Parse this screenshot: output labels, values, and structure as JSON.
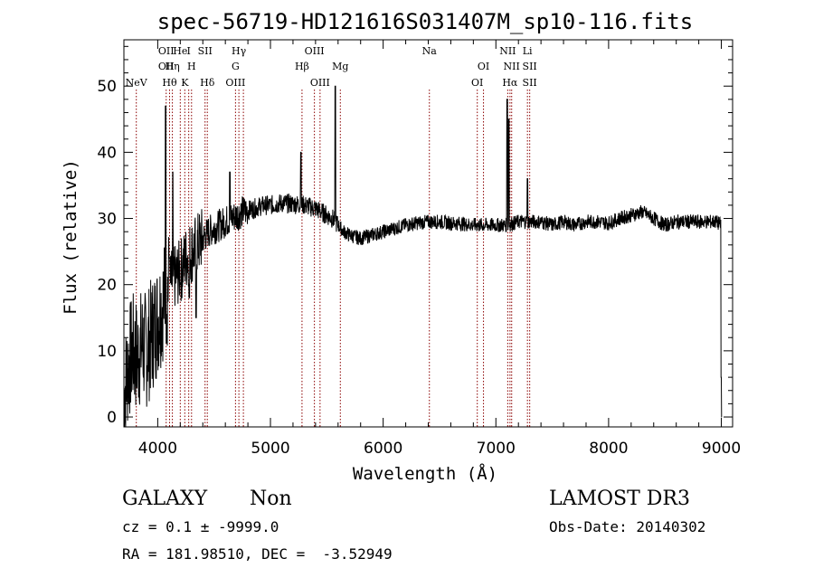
{
  "chart_data": {
    "type": "line",
    "title": "spec-56719-HD121616S031407M_sp10-116.fits",
    "xlabel": "Wavelength (Å)",
    "ylabel": "Flux (relative)",
    "xlim": [
      3700,
      9100
    ],
    "ylim": [
      -1.5,
      57
    ],
    "x_ticks": [
      4000,
      5000,
      6000,
      7000,
      8000,
      9000
    ],
    "y_ticks": [
      0,
      10,
      20,
      30,
      40,
      50
    ],
    "grid": false,
    "line_color": "#000000",
    "marker_color": "#8b0000",
    "anchors": [
      [
        3700,
        3
      ],
      [
        3740,
        8
      ],
      [
        3780,
        10
      ],
      [
        3820,
        9
      ],
      [
        3860,
        11
      ],
      [
        3900,
        10
      ],
      [
        3940,
        12
      ],
      [
        3980,
        14
      ],
      [
        4020,
        16
      ],
      [
        4060,
        18
      ],
      [
        4100,
        20
      ],
      [
        4150,
        21
      ],
      [
        4200,
        22
      ],
      [
        4250,
        24
      ],
      [
        4300,
        25
      ],
      [
        4350,
        26
      ],
      [
        4400,
        27
      ],
      [
        4450,
        28
      ],
      [
        4500,
        28.5
      ],
      [
        4550,
        29
      ],
      [
        4600,
        29.5
      ],
      [
        4650,
        30
      ],
      [
        4700,
        30.5
      ],
      [
        4750,
        31
      ],
      [
        4800,
        31.2
      ],
      [
        4850,
        31.5
      ],
      [
        4900,
        31.8
      ],
      [
        4950,
        32
      ],
      [
        5000,
        32
      ],
      [
        5100,
        32.3
      ],
      [
        5200,
        32.2
      ],
      [
        5300,
        32
      ],
      [
        5400,
        31.5
      ],
      [
        5500,
        30.5
      ],
      [
        5550,
        30
      ],
      [
        5600,
        29
      ],
      [
        5650,
        28
      ],
      [
        5700,
        27.5
      ],
      [
        5800,
        27
      ],
      [
        5900,
        27.5
      ],
      [
        6000,
        28
      ],
      [
        6100,
        28.5
      ],
      [
        6200,
        29
      ],
      [
        6300,
        29.3
      ],
      [
        6400,
        29.5
      ],
      [
        6500,
        29.5
      ],
      [
        6600,
        29.3
      ],
      [
        6700,
        29.2
      ],
      [
        6800,
        29
      ],
      [
        6900,
        29
      ],
      [
        7000,
        29
      ],
      [
        7100,
        29
      ],
      [
        7200,
        29.5
      ],
      [
        7300,
        29.5
      ],
      [
        7400,
        29.5
      ],
      [
        7500,
        29
      ],
      [
        7600,
        29.5
      ],
      [
        7700,
        29
      ],
      [
        7800,
        29.5
      ],
      [
        7900,
        29.5
      ],
      [
        8000,
        29.3
      ],
      [
        8100,
        30
      ],
      [
        8200,
        30.5
      ],
      [
        8300,
        31
      ],
      [
        8400,
        30
      ],
      [
        8500,
        29
      ],
      [
        8600,
        29.5
      ],
      [
        8700,
        29.5
      ],
      [
        8800,
        29.5
      ],
      [
        8900,
        29.5
      ],
      [
        8950,
        29.5
      ],
      [
        9000,
        29
      ]
    ],
    "spikes": [
      [
        4070,
        47
      ],
      [
        4102,
        24
      ],
      [
        4134,
        37
      ],
      [
        4200,
        20
      ],
      [
        4280,
        18
      ],
      [
        4340,
        15
      ],
      [
        4640,
        37
      ],
      [
        5270,
        40
      ],
      [
        5575,
        50
      ],
      [
        7100,
        48
      ],
      [
        7115,
        45
      ],
      [
        7280,
        36
      ],
      [
        9000,
        6
      ],
      [
        9005,
        0
      ]
    ],
    "lines": [
      {
        "x": 3810,
        "labels": [
          {
            "t": "NeV",
            "row": 3
          }
        ]
      },
      {
        "x": 4075,
        "labels": [
          {
            "t": "OII",
            "row": 1
          },
          {
            "t": "OII",
            "row": 2
          }
        ]
      },
      {
        "x": 4105,
        "labels": [
          {
            "t": "Hθ",
            "row": 3
          }
        ]
      },
      {
        "x": 4130,
        "labels": [
          {
            "t": "Hη",
            "row": 2
          }
        ]
      },
      {
        "x": 4200,
        "labels": [
          {
            "t": "He",
            "row": 1
          }
        ]
      },
      {
        "x": 4240,
        "labels": [
          {
            "t": "K",
            "row": 3
          }
        ]
      },
      {
        "x": 4275,
        "labels": [
          {
            "t": "I",
            "row": 1
          }
        ]
      },
      {
        "x": 4300,
        "labels": [
          {
            "t": "H",
            "row": 2
          }
        ]
      },
      {
        "x": 4420,
        "labels": [
          {
            "t": "SII",
            "row": 1
          }
        ]
      },
      {
        "x": 4440,
        "labels": [
          {
            "t": "Hδ",
            "row": 3
          }
        ]
      },
      {
        "x": 4690,
        "labels": [
          {
            "t": "G",
            "row": 2
          },
          {
            "t": "OIII",
            "row": 3
          }
        ]
      },
      {
        "x": 4720,
        "labels": [
          {
            "t": "Hγ",
            "row": 1
          }
        ]
      },
      {
        "x": 4760,
        "labels": []
      },
      {
        "x": 5280,
        "labels": [
          {
            "t": "Hβ",
            "row": 2
          }
        ]
      },
      {
        "x": 5390,
        "labels": [
          {
            "t": "OIII",
            "row": 1
          }
        ]
      },
      {
        "x": 5440,
        "labels": [
          {
            "t": "OIII",
            "row": 3
          }
        ]
      },
      {
        "x": 5620,
        "labels": [
          {
            "t": "Mg",
            "row": 2
          }
        ]
      },
      {
        "x": 6410,
        "labels": [
          {
            "t": "Na",
            "row": 1
          }
        ]
      },
      {
        "x": 6835,
        "labels": [
          {
            "t": "OI",
            "row": 3
          }
        ]
      },
      {
        "x": 6890,
        "labels": [
          {
            "t": "OI",
            "row": 2
          }
        ]
      },
      {
        "x": 7105,
        "labels": [
          {
            "t": "NII",
            "row": 1
          }
        ]
      },
      {
        "x": 7125,
        "labels": [
          {
            "t": "Hα",
            "row": 3
          }
        ]
      },
      {
        "x": 7140,
        "labels": [
          {
            "t": "NII",
            "row": 2
          }
        ]
      },
      {
        "x": 7280,
        "labels": [
          {
            "t": "Li",
            "row": 1
          }
        ]
      },
      {
        "x": 7300,
        "labels": [
          {
            "t": "SII",
            "row": 2
          },
          {
            "t": "SII",
            "row": 3
          }
        ]
      }
    ]
  },
  "footer": {
    "class_label": "GALAXY",
    "subclass": "Non",
    "survey": "LAMOST DR3",
    "cz": "cz = 0.1 ± -9999.0",
    "obs_date": "Obs-Date: 20140302",
    "radec": "RA = 181.98510, DEC =  -3.52949"
  }
}
